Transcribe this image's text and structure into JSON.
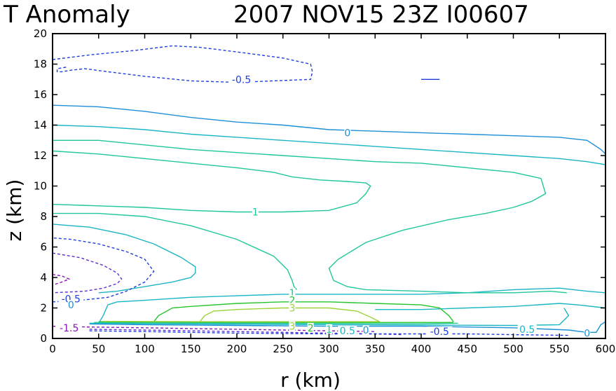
{
  "colors": {
    "background": "#ffffff",
    "axes": "#000000",
    "levels": {
      "-1.5": "#8a11b8",
      "-1": "#5b2fcf",
      "-0.5": "#1f3ee0",
      "0": "#1d90d8",
      "0.5": "#1bb6c6",
      "1": "#1fc79a",
      "2": "#26c42d",
      "3": "#9ad43a"
    }
  },
  "chart_data": {
    "type": "contour",
    "title_left": "T Anomaly",
    "title_right": "2007 NOV15 23Z   I00607",
    "xlabel": "r  (km)",
    "ylabel": "z  (km)",
    "xlim": [
      0,
      600
    ],
    "ylim": [
      0,
      20
    ],
    "x_ticks": [
      0,
      50,
      100,
      150,
      200,
      250,
      300,
      350,
      400,
      450,
      500,
      550,
      600
    ],
    "y_ticks": [
      0,
      2,
      4,
      6,
      8,
      10,
      12,
      14,
      16,
      18,
      20
    ],
    "contour_interval_note": "levels drawn at -1.5, -1, -0.5, 0, 0.5, 1, 2, 3 (negative dashed)",
    "contours": [
      {
        "level": -0.5,
        "dashed": true,
        "points": [
          [
            0,
            18.3
          ],
          [
            40,
            18.6
          ],
          [
            90,
            18.9
          ],
          [
            130,
            19.2
          ],
          [
            160,
            19.1
          ],
          [
            200,
            18.8
          ],
          [
            250,
            18.4
          ],
          [
            280,
            18.0
          ],
          [
            282,
            17.5
          ],
          [
            280,
            17.0
          ],
          [
            240,
            16.9
          ],
          [
            200,
            16.8
          ],
          [
            150,
            16.9
          ],
          [
            100,
            17.2
          ],
          [
            60,
            17.5
          ],
          [
            35,
            17.7
          ],
          [
            20,
            17.6
          ],
          [
            10,
            17.5
          ],
          [
            5,
            17.5
          ],
          [
            5,
            17.7
          ],
          [
            15,
            17.8
          ]
        ]
      },
      {
        "level": -0.5,
        "dashed": false,
        "points": [
          [
            400,
            17.0
          ],
          [
            420,
            17.0
          ]
        ]
      },
      {
        "level": 0,
        "dashed": false,
        "points": [
          [
            0,
            15.3
          ],
          [
            50,
            15.2
          ],
          [
            100,
            14.9
          ],
          [
            150,
            14.5
          ],
          [
            200,
            14.2
          ],
          [
            250,
            14.0
          ],
          [
            300,
            13.7
          ],
          [
            350,
            13.6
          ],
          [
            400,
            13.5
          ],
          [
            450,
            13.4
          ],
          [
            500,
            13.3
          ],
          [
            550,
            13.2
          ],
          [
            580,
            13.0
          ],
          [
            595,
            12.4
          ],
          [
            600,
            12.1
          ]
        ]
      },
      {
        "level": 0.5,
        "dashed": false,
        "points": [
          [
            0,
            14.0
          ],
          [
            50,
            13.9
          ],
          [
            100,
            13.7
          ],
          [
            150,
            13.4
          ],
          [
            200,
            13.2
          ],
          [
            250,
            13.0
          ],
          [
            300,
            12.8
          ],
          [
            350,
            12.6
          ],
          [
            400,
            12.4
          ],
          [
            450,
            12.2
          ],
          [
            500,
            12.0
          ],
          [
            550,
            11.8
          ],
          [
            580,
            11.6
          ],
          [
            600,
            11.4
          ]
        ]
      },
      {
        "level": 0.5,
        "dashed": false,
        "points": [
          [
            0,
            7.5
          ],
          [
            40,
            7.3
          ],
          [
            80,
            6.8
          ],
          [
            110,
            6.2
          ],
          [
            140,
            5.3
          ],
          [
            155,
            4.7
          ],
          [
            155,
            4.3
          ],
          [
            150,
            4.0
          ],
          [
            130,
            3.7
          ],
          [
            100,
            3.4
          ],
          [
            70,
            3.1
          ],
          [
            50,
            3.0
          ]
        ]
      },
      {
        "level": 0.5,
        "dashed": false,
        "points": [
          [
            600,
            3.0
          ],
          [
            580,
            3.1
          ],
          [
            550,
            3.3
          ],
          [
            500,
            3.2
          ],
          [
            450,
            3.0
          ],
          [
            400,
            2.9
          ],
          [
            350,
            2.9
          ],
          [
            300,
            2.9
          ],
          [
            250,
            2.9
          ],
          [
            200,
            2.8
          ],
          [
            150,
            2.7
          ],
          [
            100,
            2.5
          ],
          [
            70,
            2.4
          ],
          [
            60,
            2.2
          ],
          [
            55,
            1.5
          ],
          [
            50,
            1.0
          ]
        ]
      },
      {
        "level": 0.5,
        "dashed": false,
        "points": [
          [
            600,
            2.0
          ],
          [
            570,
            2.2
          ],
          [
            550,
            2.3
          ],
          [
            500,
            2.1
          ],
          [
            450,
            2.0
          ],
          [
            400,
            1.9
          ],
          [
            350,
            1.9
          ]
        ]
      },
      {
        "level": 1,
        "dashed": false,
        "points": [
          [
            0,
            13.0
          ],
          [
            50,
            13.0
          ],
          [
            100,
            12.7
          ],
          [
            150,
            12.4
          ],
          [
            200,
            12.2
          ],
          [
            250,
            12.0
          ],
          [
            300,
            11.8
          ],
          [
            350,
            11.6
          ],
          [
            400,
            11.5
          ],
          [
            450,
            11.2
          ],
          [
            500,
            10.9
          ],
          [
            530,
            10.5
          ],
          [
            535,
            9.5
          ],
          [
            520,
            9.0
          ],
          [
            500,
            8.6
          ],
          [
            470,
            8.2
          ],
          [
            430,
            7.8
          ],
          [
            380,
            7.1
          ],
          [
            340,
            6.3
          ],
          [
            310,
            5.2
          ],
          [
            300,
            4.6
          ],
          [
            305,
            3.8
          ],
          [
            320,
            3.4
          ],
          [
            340,
            3.2
          ],
          [
            400,
            3.1
          ],
          [
            450,
            3.0
          ],
          [
            500,
            3.0
          ],
          [
            540,
            3.1
          ],
          [
            558,
            3.0
          ]
        ]
      },
      {
        "level": 1,
        "dashed": false,
        "points": [
          [
            0,
            8.8
          ],
          [
            50,
            8.7
          ],
          [
            100,
            8.6
          ],
          [
            150,
            8.4
          ],
          [
            200,
            8.3
          ],
          [
            250,
            8.3
          ],
          [
            300,
            8.4
          ],
          [
            330,
            8.9
          ],
          [
            340,
            9.5
          ],
          [
            345,
            10.0
          ],
          [
            340,
            10.2
          ],
          [
            320,
            10.3
          ],
          [
            290,
            10.4
          ],
          [
            260,
            10.6
          ],
          [
            240,
            10.9
          ],
          [
            200,
            11.2
          ],
          [
            150,
            11.5
          ],
          [
            100,
            11.8
          ],
          [
            50,
            12.1
          ],
          [
            0,
            12.3
          ]
        ]
      },
      {
        "level": 1,
        "dashed": false,
        "points": [
          [
            0,
            8.2
          ],
          [
            50,
            8.2
          ],
          [
            100,
            8.0
          ],
          [
            150,
            7.4
          ],
          [
            200,
            6.5
          ],
          [
            240,
            5.4
          ],
          [
            255,
            4.5
          ],
          [
            260,
            3.8
          ],
          [
            262,
            3.4
          ],
          [
            265,
            3.2
          ]
        ]
      },
      {
        "level": 2,
        "dashed": false,
        "points": [
          [
            110,
            1.1
          ],
          [
            115,
            1.5
          ],
          [
            130,
            2.0
          ],
          [
            150,
            2.1
          ],
          [
            200,
            2.3
          ],
          [
            250,
            2.4
          ],
          [
            300,
            2.4
          ],
          [
            350,
            2.3
          ],
          [
            400,
            2.2
          ],
          [
            420,
            2.0
          ],
          [
            430,
            1.5
          ],
          [
            435,
            1.1
          ]
        ]
      },
      {
        "level": 3,
        "dashed": false,
        "points": [
          [
            160,
            1.1
          ],
          [
            165,
            1.5
          ],
          [
            175,
            1.8
          ],
          [
            200,
            1.9
          ],
          [
            250,
            2.0
          ],
          [
            300,
            2.0
          ],
          [
            330,
            1.8
          ],
          [
            345,
            1.4
          ],
          [
            355,
            1.1
          ]
        ]
      },
      {
        "level": -0.5,
        "dashed": true,
        "points": [
          [
            0,
            2.4
          ],
          [
            30,
            2.5
          ],
          [
            60,
            2.7
          ],
          [
            80,
            3.1
          ],
          [
            100,
            3.7
          ],
          [
            110,
            4.4
          ],
          [
            100,
            5.2
          ],
          [
            80,
            5.7
          ],
          [
            50,
            6.2
          ],
          [
            20,
            6.5
          ],
          [
            0,
            6.6
          ]
        ]
      },
      {
        "level": -1,
        "dashed": true,
        "points": [
          [
            0,
            5.6
          ],
          [
            30,
            5.3
          ],
          [
            55,
            4.8
          ],
          [
            70,
            4.3
          ],
          [
            75,
            3.9
          ],
          [
            70,
            3.6
          ],
          [
            55,
            3.3
          ],
          [
            35,
            3.1
          ],
          [
            0,
            3.0
          ]
        ]
      },
      {
        "level": -1.5,
        "dashed": true,
        "points": [
          [
            0,
            4.2
          ],
          [
            10,
            4.1
          ],
          [
            18,
            3.9
          ],
          [
            10,
            3.7
          ],
          [
            0,
            3.5
          ]
        ]
      },
      {
        "level": -1.5,
        "dashed": true,
        "points": [
          [
            0,
            0.8
          ],
          [
            40,
            0.75
          ],
          [
            100,
            0.7
          ],
          [
            150,
            0.65
          ],
          [
            200,
            0.6
          ],
          [
            250,
            0.55
          ],
          [
            300,
            0.5
          ],
          [
            350,
            0.45
          ]
        ]
      },
      {
        "level": -1,
        "dashed": true,
        "points": [
          [
            40,
            0.6
          ],
          [
            100,
            0.55
          ],
          [
            150,
            0.5
          ],
          [
            200,
            0.45
          ],
          [
            250,
            0.4
          ],
          [
            300,
            0.35
          ],
          [
            350,
            0.3
          ],
          [
            380,
            0.25
          ]
        ]
      },
      {
        "level": -0.5,
        "dashed": true,
        "points": [
          [
            40,
            0.5
          ],
          [
            100,
            0.45
          ],
          [
            200,
            0.35
          ],
          [
            300,
            0.3
          ],
          [
            400,
            0.3
          ],
          [
            450,
            0.3
          ],
          [
            500,
            0.25
          ],
          [
            560,
            0.2
          ]
        ]
      },
      {
        "level": 0,
        "dashed": false,
        "points": [
          [
            40,
            0.95
          ],
          [
            100,
            0.9
          ],
          [
            200,
            0.85
          ],
          [
            300,
            0.8
          ],
          [
            400,
            0.8
          ],
          [
            500,
            0.7
          ],
          [
            560,
            0.55
          ],
          [
            580,
            0.4
          ],
          [
            590,
            0.4
          ],
          [
            595,
            0.9
          ],
          [
            600,
            1.1
          ]
        ]
      },
      {
        "level": 0.5,
        "dashed": false,
        "points": [
          [
            40,
            1.0
          ],
          [
            100,
            0.97
          ],
          [
            200,
            0.93
          ],
          [
            300,
            0.9
          ],
          [
            400,
            0.88
          ],
          [
            500,
            0.85
          ],
          [
            550,
            0.9
          ],
          [
            560,
            1.5
          ],
          [
            555,
            2.0
          ]
        ]
      },
      {
        "level": 1,
        "dashed": false,
        "points": [
          [
            45,
            1.05
          ],
          [
            100,
            1.02
          ],
          [
            200,
            1.0
          ],
          [
            300,
            0.98
          ],
          [
            400,
            0.96
          ],
          [
            440,
            1.0
          ]
        ]
      },
      {
        "level": 2,
        "dashed": false,
        "points": [
          [
            50,
            1.1
          ],
          [
            110,
            1.08
          ],
          [
            200,
            1.06
          ],
          [
            300,
            1.05
          ],
          [
            435,
            1.05
          ]
        ]
      },
      {
        "level": 3,
        "dashed": false,
        "points": [
          [
            55,
            1.12
          ],
          [
            160,
            1.1
          ],
          [
            250,
            1.1
          ],
          [
            355,
            1.1
          ]
        ]
      }
    ],
    "contour_labels": [
      {
        "text": "-0.5",
        "level": -0.5,
        "x": 205,
        "y": 17.0
      },
      {
        "text": "0",
        "level": 0,
        "x": 320,
        "y": 13.5
      },
      {
        "text": "1",
        "level": 1,
        "x": 220,
        "y": 8.3
      },
      {
        "text": "1",
        "level": 1,
        "x": 260,
        "y": 3.0
      },
      {
        "text": "2",
        "level": 2,
        "x": 260,
        "y": 2.5
      },
      {
        "text": "3",
        "level": 3,
        "x": 260,
        "y": 2.0
      },
      {
        "text": "-0.5",
        "level": -0.5,
        "x": 20,
        "y": 2.6
      },
      {
        "text": "0",
        "level": 0,
        "x": 20,
        "y": 2.2
      },
      {
        "text": "-1.5",
        "level": -1.5,
        "x": 18,
        "y": 0.7
      },
      {
        "text": "3",
        "level": 3,
        "x": 260,
        "y": 0.8
      },
      {
        "text": "2",
        "level": 2,
        "x": 280,
        "y": 0.7
      },
      {
        "text": "1",
        "level": 1,
        "x": 300,
        "y": 0.6
      },
      {
        "text": "0.5",
        "level": 0.5,
        "x": 320,
        "y": 0.5
      },
      {
        "text": "0",
        "level": 0,
        "x": 340,
        "y": 0.55
      },
      {
        "text": "-0.5",
        "level": -0.5,
        "x": 420,
        "y": 0.45
      },
      {
        "text": "0.5",
        "level": 0.5,
        "x": 515,
        "y": 0.6
      },
      {
        "text": "0",
        "level": 0,
        "x": 580,
        "y": 0.35
      }
    ]
  }
}
